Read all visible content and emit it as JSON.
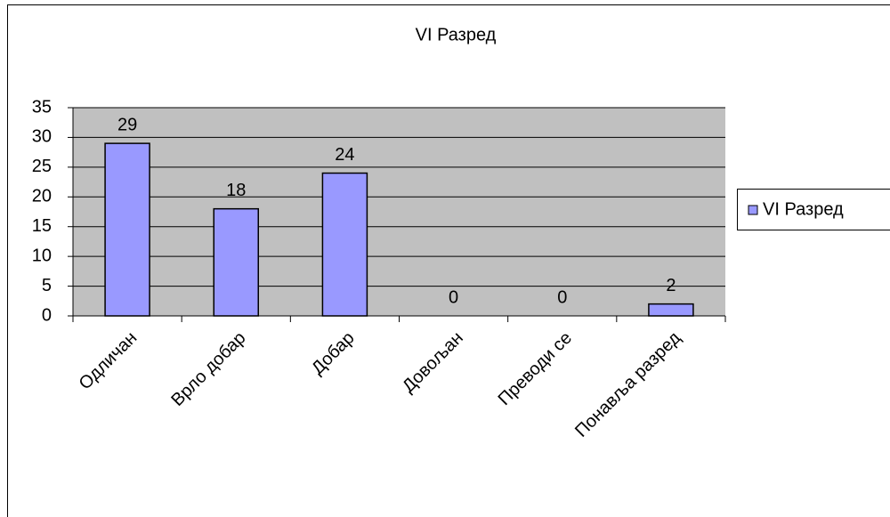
{
  "chart_data": {
    "type": "bar",
    "title": "VI Разред",
    "categories": [
      "Одличан",
      "Врло добар",
      "Добар",
      "Довољан",
      "Преводи се",
      "Понавља разред"
    ],
    "series": [
      {
        "name": "VI Разред",
        "color": "#9999ff",
        "values": [
          29,
          18,
          24,
          0,
          0,
          2
        ]
      }
    ],
    "ylim": [
      0,
      35
    ],
    "yticks": [
      0,
      5,
      10,
      15,
      20,
      25,
      30,
      35
    ],
    "grid": true,
    "legend": "right"
  }
}
